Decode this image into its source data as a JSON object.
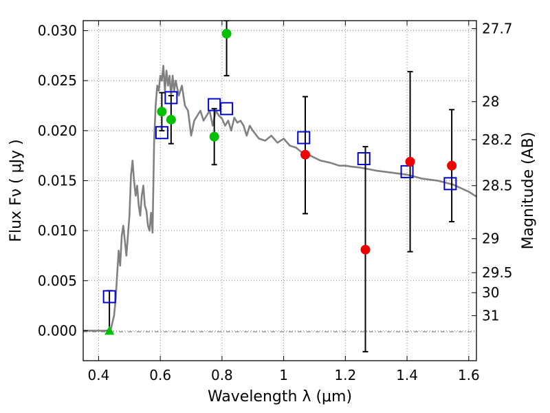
{
  "chart_data": {
    "type": "scatter",
    "xlabel": "Wavelength  λ (μm)",
    "ylabel": "Flux  Fν  ( μJy )",
    "y2label": "Magnitude (AB)",
    "xlim": [
      0.35,
      1.625
    ],
    "ylim": [
      -0.003,
      0.031
    ],
    "grid": true,
    "x_ticks": [
      0.4,
      0.6,
      0.8,
      1.0,
      1.2,
      1.4,
      1.6
    ],
    "x_tick_labels": [
      "0.4",
      "0.6",
      "0.8",
      "1",
      "1.2",
      "1.4",
      "1.6"
    ],
    "y_ticks": [
      0.0,
      0.005,
      0.01,
      0.015,
      0.02,
      0.025,
      0.03
    ],
    "y_tick_labels": [
      "0.000",
      "0.005",
      "0.010",
      "0.015",
      "0.020",
      "0.025",
      "0.030"
    ],
    "y2_ticks": [
      {
        "label": "27.7",
        "flux": 0.0302
      },
      {
        "label": "28",
        "flux": 0.0229
      },
      {
        "label": "28.2",
        "flux": 0.0191
      },
      {
        "label": "28.5",
        "flux": 0.0145
      },
      {
        "label": "29",
        "flux": 0.0092
      },
      {
        "label": "29.5",
        "flux": 0.0058
      },
      {
        "label": "30",
        "flux": 0.0038
      },
      {
        "label": "31",
        "flux": 0.0015
      }
    ],
    "colors": {
      "model": "#808080",
      "squares": "#0000cc",
      "green": "#00c000",
      "red": "#ee0000",
      "errorbar": "#000000",
      "grid": "#666666"
    },
    "series": [
      {
        "marker": "line",
        "x": [
          0.35,
          0.43,
          0.44,
          0.45,
          0.455,
          0.46,
          0.465,
          0.47,
          0.475,
          0.48,
          0.485,
          0.49,
          0.5,
          0.505,
          0.51,
          0.515,
          0.52,
          0.525,
          0.53,
          0.535,
          0.54,
          0.545,
          0.55,
          0.555,
          0.56,
          0.565,
          0.57,
          0.575,
          0.58,
          0.585,
          0.59,
          0.595,
          0.6,
          0.605,
          0.61,
          0.615,
          0.62,
          0.625,
          0.63,
          0.635,
          0.64,
          0.645,
          0.65,
          0.66,
          0.67,
          0.68,
          0.69,
          0.7,
          0.71,
          0.72,
          0.73,
          0.74,
          0.75,
          0.76,
          0.77,
          0.78,
          0.79,
          0.8,
          0.81,
          0.82,
          0.83,
          0.84,
          0.85,
          0.86,
          0.87,
          0.88,
          0.89,
          0.9,
          0.92,
          0.94,
          0.96,
          0.98,
          1.0,
          1.02,
          1.04,
          1.06,
          1.08,
          1.1,
          1.12,
          1.15,
          1.18,
          1.2,
          1.22,
          1.25,
          1.3,
          1.35,
          1.4,
          1.45,
          1.5,
          1.55,
          1.6,
          1.625
        ],
        "y": [
          0.0,
          0.0,
          0.0002,
          0.0015,
          0.003,
          0.0055,
          0.008,
          0.0065,
          0.0095,
          0.0105,
          0.009,
          0.0075,
          0.0115,
          0.0155,
          0.017,
          0.015,
          0.0135,
          0.0145,
          0.0125,
          0.0115,
          0.0135,
          0.0145,
          0.0125,
          0.012,
          0.0105,
          0.01,
          0.0118,
          0.0098,
          0.019,
          0.0225,
          0.0245,
          0.024,
          0.0255,
          0.025,
          0.0265,
          0.024,
          0.026,
          0.0245,
          0.0255,
          0.0235,
          0.0255,
          0.024,
          0.025,
          0.0235,
          0.0245,
          0.0225,
          0.022,
          0.0195,
          0.021,
          0.0215,
          0.022,
          0.021,
          0.0215,
          0.022,
          0.0205,
          0.022,
          0.0215,
          0.0212,
          0.0205,
          0.021,
          0.02,
          0.0213,
          0.0208,
          0.021,
          0.0205,
          0.0195,
          0.0205,
          0.02,
          0.0192,
          0.019,
          0.0195,
          0.0188,
          0.0192,
          0.0185,
          0.0183,
          0.0178,
          0.0176,
          0.0173,
          0.017,
          0.0168,
          0.0165,
          0.0165,
          0.0164,
          0.0163,
          0.016,
          0.0158,
          0.0156,
          0.0152,
          0.015,
          0.0146,
          0.0139,
          0.0134
        ]
      },
      {
        "marker": "square",
        "x": [
          0.435,
          0.605,
          0.635,
          0.775,
          0.815,
          1.065,
          1.26,
          1.4,
          1.54
        ],
        "y": [
          0.0034,
          0.0198,
          0.0233,
          0.0226,
          0.0222,
          0.0193,
          0.0172,
          0.0159,
          0.0147
        ]
      },
      {
        "marker": "triangle",
        "x": [
          0.435
        ],
        "y": [
          0.0
        ]
      },
      {
        "marker": "green-circle",
        "x": [
          0.605,
          0.635,
          0.775,
          0.815
        ],
        "y": [
          0.0219,
          0.0211,
          0.0194,
          0.0297
        ],
        "err_low": [
          0.02,
          0.0187,
          0.0166,
          0.0255
        ],
        "err_high": [
          0.0238,
          0.0235,
          0.0222,
          0.031
        ]
      },
      {
        "marker": "red-circle",
        "x": [
          1.07,
          1.265,
          1.41,
          1.545
        ],
        "y": [
          0.0176,
          0.0081,
          0.0169,
          0.0165
        ],
        "err_low": [
          0.0117,
          -0.0021,
          0.0079,
          0.0109
        ],
        "err_high": [
          0.0234,
          0.0184,
          0.0259,
          0.0221
        ]
      },
      {
        "marker": "errorbar-only",
        "x": [
          0.435
        ],
        "y": [
          0.0015
        ],
        "err_low": [
          0.0
        ],
        "err_high": [
          0.004
        ]
      }
    ]
  }
}
